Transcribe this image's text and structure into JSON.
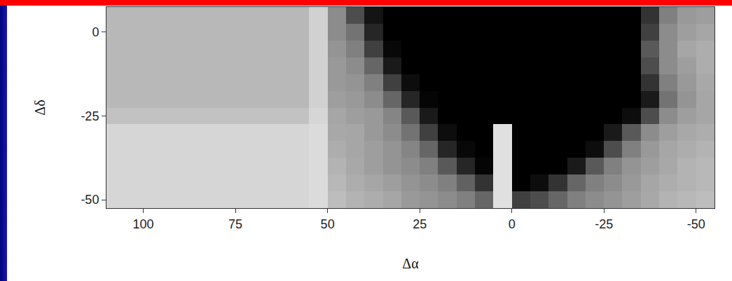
{
  "chart_data": {
    "type": "heatmap",
    "x_label": "Δα",
    "y_label": "Δδ",
    "x": [
      107.5,
      102.5,
      97.5,
      92.5,
      87.5,
      82.5,
      77.5,
      72.5,
      67.5,
      62.5,
      57.5,
      52.5,
      47.5,
      42.5,
      37.5,
      32.5,
      27.5,
      22.5,
      17.5,
      12.5,
      7.5,
      2.5,
      -2.5,
      -7.5,
      -12.5,
      -17.5,
      -22.5,
      -27.5,
      -32.5,
      -37.5,
      -42.5,
      -47.5,
      -52.5
    ],
    "y": [
      5,
      0,
      -5,
      -10,
      -15,
      -20,
      -25,
      -30,
      -35,
      -40,
      -45,
      -50
    ],
    "cells": [
      [
        72,
        72,
        72,
        72,
        72,
        72,
        72,
        72,
        72,
        72,
        72,
        82,
        55,
        30,
        8,
        0,
        0,
        0,
        0,
        0,
        0,
        0,
        0,
        0,
        0,
        0,
        0,
        0,
        0,
        20,
        50,
        60,
        62
      ],
      [
        72,
        72,
        72,
        72,
        72,
        72,
        72,
        72,
        72,
        72,
        72,
        82,
        55,
        45,
        15,
        0,
        0,
        0,
        0,
        0,
        0,
        0,
        0,
        0,
        0,
        0,
        0,
        0,
        0,
        25,
        55,
        62,
        65
      ],
      [
        72,
        72,
        72,
        72,
        72,
        72,
        72,
        72,
        72,
        72,
        72,
        82,
        58,
        50,
        25,
        3,
        0,
        0,
        0,
        0,
        0,
        0,
        0,
        0,
        0,
        0,
        0,
        0,
        0,
        35,
        55,
        65,
        68
      ],
      [
        72,
        72,
        72,
        72,
        72,
        72,
        72,
        72,
        72,
        72,
        72,
        82,
        60,
        55,
        40,
        10,
        0,
        0,
        0,
        0,
        0,
        0,
        0,
        0,
        0,
        0,
        0,
        0,
        0,
        30,
        55,
        62,
        68
      ],
      [
        72,
        72,
        72,
        72,
        72,
        72,
        72,
        72,
        72,
        72,
        72,
        82,
        60,
        58,
        50,
        25,
        5,
        0,
        0,
        0,
        0,
        0,
        0,
        0,
        0,
        0,
        0,
        0,
        0,
        20,
        50,
        60,
        66
      ],
      [
        72,
        72,
        72,
        72,
        72,
        72,
        72,
        72,
        72,
        72,
        72,
        82,
        62,
        60,
        55,
        40,
        15,
        2,
        0,
        0,
        0,
        0,
        0,
        0,
        0,
        0,
        0,
        0,
        0,
        10,
        45,
        58,
        65
      ],
      [
        76,
        76,
        76,
        76,
        76,
        76,
        76,
        76,
        76,
        76,
        76,
        84,
        65,
        62,
        60,
        52,
        35,
        10,
        0,
        0,
        0,
        0,
        0,
        0,
        0,
        0,
        0,
        0,
        5,
        30,
        55,
        62,
        65
      ],
      [
        84,
        84,
        84,
        84,
        84,
        84,
        84,
        84,
        84,
        84,
        84,
        86,
        66,
        65,
        60,
        55,
        45,
        25,
        5,
        0,
        0,
        88,
        0,
        0,
        0,
        0,
        0,
        10,
        35,
        55,
        62,
        66,
        68
      ],
      [
        84,
        84,
        84,
        84,
        84,
        84,
        84,
        84,
        84,
        84,
        84,
        86,
        68,
        65,
        62,
        58,
        52,
        40,
        15,
        3,
        0,
        88,
        0,
        0,
        0,
        0,
        5,
        30,
        50,
        60,
        65,
        68,
        70
      ],
      [
        84,
        84,
        84,
        84,
        84,
        84,
        84,
        84,
        84,
        84,
        84,
        86,
        70,
        66,
        62,
        58,
        55,
        50,
        35,
        15,
        2,
        88,
        0,
        0,
        0,
        10,
        35,
        50,
        58,
        62,
        66,
        70,
        72
      ],
      [
        84,
        84,
        84,
        84,
        84,
        84,
        84,
        84,
        84,
        84,
        84,
        86,
        72,
        68,
        65,
        62,
        58,
        55,
        50,
        38,
        20,
        88,
        0,
        5,
        20,
        40,
        50,
        55,
        60,
        65,
        68,
        70,
        72
      ],
      [
        84,
        84,
        84,
        84,
        84,
        84,
        84,
        84,
        84,
        84,
        84,
        86,
        74,
        70,
        68,
        65,
        60,
        58,
        55,
        50,
        40,
        88,
        25,
        30,
        40,
        50,
        55,
        58,
        62,
        66,
        70,
        72,
        74
      ]
    ],
    "zlim": [
      0,
      100
    ],
    "xlim": [
      110,
      -55
    ],
    "ylim": [
      -52.5,
      7.5
    ],
    "xticks": [
      100,
      75,
      50,
      25,
      0,
      -25,
      -50
    ],
    "yticks": [
      0,
      -25,
      -50
    ],
    "grid": false
  }
}
